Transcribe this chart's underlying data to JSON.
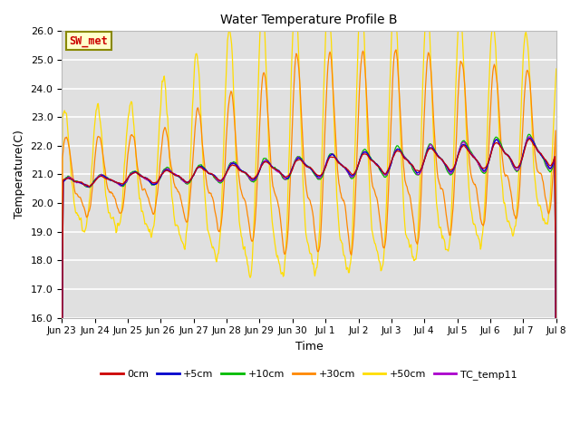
{
  "title": "Water Temperature Profile B",
  "xlabel": "Time",
  "ylabel": "Temperature(C)",
  "ylim": [
    16.0,
    26.0
  ],
  "yticks": [
    16.0,
    17.0,
    18.0,
    19.0,
    20.0,
    21.0,
    22.0,
    23.0,
    24.0,
    25.0,
    26.0
  ],
  "xtick_labels": [
    "Jun 23",
    "Jun 24",
    "Jun 25",
    "Jun 26",
    "Jun 27",
    "Jun 28",
    "Jun 29",
    "Jun 30",
    "Jul 1",
    "Jul 2",
    "Jul 3",
    "Jul 4",
    "Jul 5",
    "Jul 6",
    "Jul 7",
    "Jul 8"
  ],
  "bg_color": "#e0e0e0",
  "grid_color": "#ffffff",
  "series_colors": {
    "0cm": "#cc0000",
    "+5cm": "#0000cc",
    "+10cm": "#00bb00",
    "+30cm": "#ff8800",
    "+50cm": "#ffdd00",
    "TC_temp11": "#aa00cc"
  },
  "annotation_text": "SW_met",
  "annotation_color": "#cc0000",
  "annotation_bg": "#ffffcc",
  "annotation_border": "#888800",
  "figsize": [
    6.4,
    4.8
  ],
  "dpi": 100
}
